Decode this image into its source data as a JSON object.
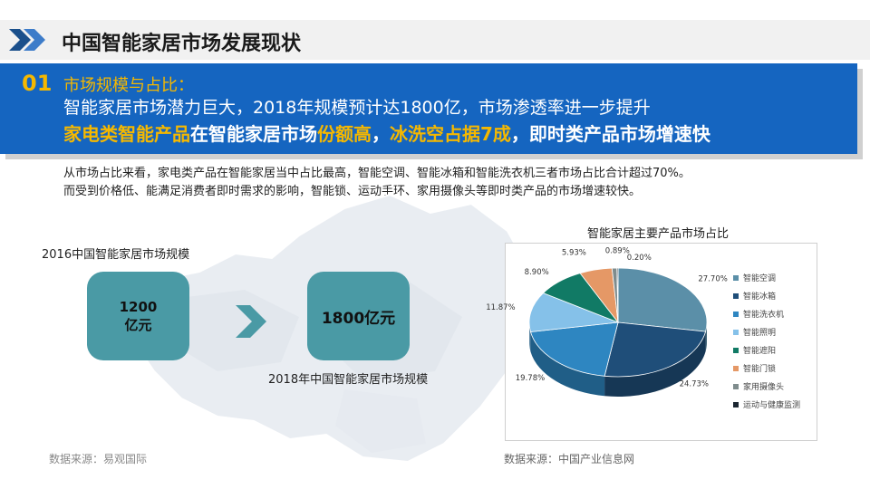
{
  "header": {
    "title": "中国智能家居市场发展现状"
  },
  "banner": {
    "number": "01",
    "line1": "市场规模与占比：",
    "line2": "智能家居市场潜力巨大，2018年规模预计达1800亿，市场渗透率进一步提升",
    "line3_parts": [
      "家电类智能产品",
      "在智能家居市场",
      "份额高",
      "，",
      "冰洗空占据7成",
      "，即时类产品市场增速快"
    ]
  },
  "description": {
    "line1": "从市场占比来看，家电类产品在智能家居当中占比最高，智能空调、智能冰箱和智能洗衣机三者市场占比合计超过70%。",
    "line2": "而受到价格低、能满足消费者即时需求的影响，智能锁、运动手环、家用摄像头等即时类产品的市场增速较快。"
  },
  "market_size": {
    "label_2016": "2016中国智能家居市场规模",
    "value_2016_line1": "1200",
    "value_2016_line2": "亿元",
    "value_2018": "1800亿元",
    "label_2018": "2018年中国智能家居市场规模",
    "source": "数据来源：易观国际"
  },
  "chart_data": {
    "type": "pie",
    "title": "智能家居主要产品市场占比",
    "categories": [
      "智能空调",
      "智能冰箱",
      "智能洗衣机",
      "智能照明",
      "智能遮阳",
      "智能门锁",
      "家用摄像头",
      "运动与健康监测"
    ],
    "values": [
      27.7,
      24.73,
      19.78,
      11.87,
      8.9,
      5.93,
      0.89,
      0.2
    ],
    "labels": [
      "27.70%",
      "24.73%",
      "19.78%",
      "11.87%",
      "8.90%",
      "5.93%",
      "0.89%",
      "0.20%"
    ],
    "colors": [
      "#5b8fa8",
      "#1f4e79",
      "#2e86c1",
      "#85c1e9",
      "#117a65",
      "#e59866",
      "#7f8c8d",
      "#1b2631"
    ],
    "legend_position": "right",
    "source": "数据来源：中国产业信息网"
  }
}
